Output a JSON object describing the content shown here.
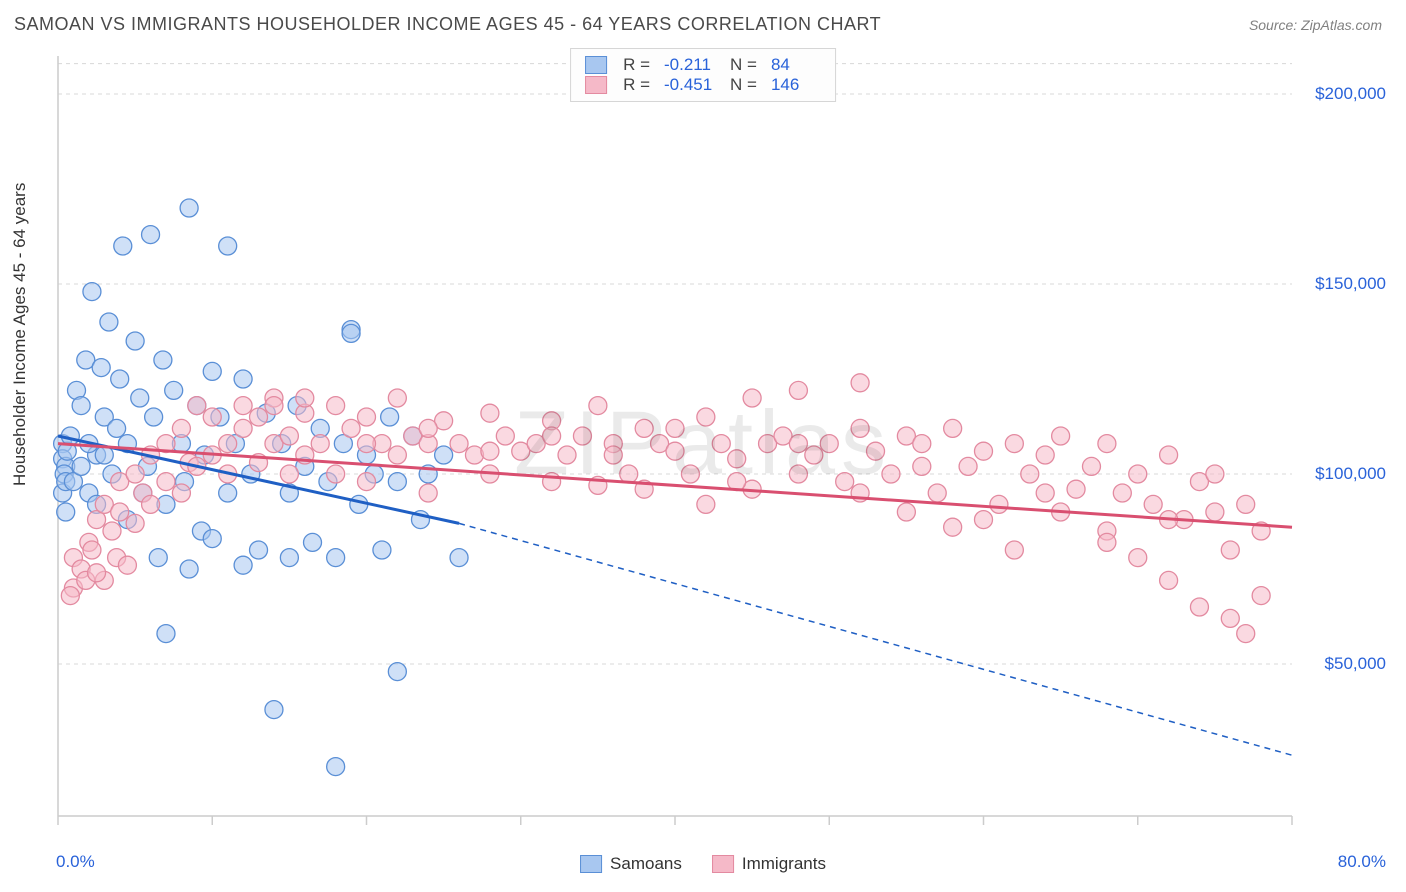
{
  "title": "SAMOAN VS IMMIGRANTS HOUSEHOLDER INCOME AGES 45 - 64 YEARS CORRELATION CHART",
  "source": "Source: ZipAtlas.com",
  "watermark": "ZIPatlas",
  "ylabel": "Householder Income Ages 45 - 64 years",
  "chart": {
    "type": "scatter",
    "xlim": [
      0,
      80
    ],
    "ylim": [
      10000,
      210000
    ],
    "x_axis_label_min": "0.0%",
    "x_axis_label_max": "80.0%",
    "y_ticks": [
      50000,
      100000,
      150000,
      200000
    ],
    "y_tick_labels": [
      "$50,000",
      "$100,000",
      "$150,000",
      "$200,000"
    ],
    "x_ticks": [
      0,
      10,
      20,
      30,
      40,
      50,
      60,
      70,
      80
    ],
    "background_color": "#ffffff",
    "grid_color": "#d8d8d8",
    "axis_color": "#cccccc",
    "marker_radius": 9,
    "marker_stroke_width": 1.3,
    "series": [
      {
        "name": "Samoans",
        "fill_color": "#a8c7f0",
        "stroke_color": "#5a8fd6",
        "fill_opacity": 0.55,
        "line_color": "#1f5fc4",
        "trend_solid": [
          [
            0,
            110000
          ],
          [
            26,
            87000
          ]
        ],
        "trend_dash": [
          [
            26,
            87000
          ],
          [
            80,
            26000
          ]
        ],
        "R": "-0.211",
        "N": "84",
        "points": [
          [
            0.3,
            108000
          ],
          [
            0.3,
            104000
          ],
          [
            0.5,
            102000
          ],
          [
            0.4,
            100000
          ],
          [
            0.6,
            106000
          ],
          [
            0.8,
            110000
          ],
          [
            0.3,
            95000
          ],
          [
            0.5,
            98000
          ],
          [
            1.2,
            122000
          ],
          [
            1.5,
            118000
          ],
          [
            1.8,
            130000
          ],
          [
            2.2,
            148000
          ],
          [
            2.5,
            105000
          ],
          [
            2.8,
            128000
          ],
          [
            3.0,
            115000
          ],
          [
            3.3,
            140000
          ],
          [
            3.5,
            100000
          ],
          [
            3.8,
            112000
          ],
          [
            4.0,
            125000
          ],
          [
            4.2,
            160000
          ],
          [
            4.5,
            108000
          ],
          [
            4.5,
            88000
          ],
          [
            5.0,
            135000
          ],
          [
            5.3,
            120000
          ],
          [
            5.5,
            95000
          ],
          [
            5.8,
            102000
          ],
          [
            6.0,
            163000
          ],
          [
            6.2,
            115000
          ],
          [
            6.5,
            78000
          ],
          [
            6.8,
            130000
          ],
          [
            7.0,
            92000
          ],
          [
            7.0,
            58000
          ],
          [
            7.5,
            122000
          ],
          [
            8.0,
            108000
          ],
          [
            8.2,
            98000
          ],
          [
            8.5,
            170000
          ],
          [
            8.5,
            75000
          ],
          [
            9.0,
            118000
          ],
          [
            9.3,
            85000
          ],
          [
            9.5,
            105000
          ],
          [
            10,
            127000
          ],
          [
            10,
            83000
          ],
          [
            10.5,
            115000
          ],
          [
            11,
            160000
          ],
          [
            11,
            95000
          ],
          [
            11.5,
            108000
          ],
          [
            12,
            125000
          ],
          [
            12,
            76000
          ],
          [
            12.5,
            100000
          ],
          [
            13,
            80000
          ],
          [
            13.5,
            116000
          ],
          [
            14,
            38000
          ],
          [
            14.5,
            108000
          ],
          [
            15,
            95000
          ],
          [
            15,
            78000
          ],
          [
            15.5,
            118000
          ],
          [
            16,
            102000
          ],
          [
            16.5,
            82000
          ],
          [
            17,
            112000
          ],
          [
            17.5,
            98000
          ],
          [
            18,
            78000
          ],
          [
            18,
            23000
          ],
          [
            18.5,
            108000
          ],
          [
            19,
            138000
          ],
          [
            19,
            137000
          ],
          [
            19.5,
            92000
          ],
          [
            20,
            105000
          ],
          [
            20.5,
            100000
          ],
          [
            21,
            80000
          ],
          [
            21.5,
            115000
          ],
          [
            22,
            98000
          ],
          [
            22,
            48000
          ],
          [
            23,
            110000
          ],
          [
            23.5,
            88000
          ],
          [
            24,
            100000
          ],
          [
            25,
            105000
          ],
          [
            26,
            78000
          ],
          [
            0.5,
            90000
          ],
          [
            1.0,
            98000
          ],
          [
            1.5,
            102000
          ],
          [
            2.0,
            95000
          ],
          [
            2.0,
            108000
          ],
          [
            2.5,
            92000
          ],
          [
            3.0,
            105000
          ]
        ]
      },
      {
        "name": "Immigrants",
        "fill_color": "#f5b9c8",
        "stroke_color": "#e38aa0",
        "fill_opacity": 0.55,
        "line_color": "#d94f70",
        "trend_solid": [
          [
            0,
            108000
          ],
          [
            80,
            86000
          ]
        ],
        "trend_dash": null,
        "R": "-0.451",
        "N": "146",
        "points": [
          [
            1,
            78000
          ],
          [
            2,
            82000
          ],
          [
            2.5,
            88000
          ],
          [
            3,
            92000
          ],
          [
            3.5,
            85000
          ],
          [
            4,
            98000
          ],
          [
            4,
            90000
          ],
          [
            5,
            100000
          ],
          [
            5,
            87000
          ],
          [
            5.5,
            95000
          ],
          [
            6,
            105000
          ],
          [
            6,
            92000
          ],
          [
            7,
            108000
          ],
          [
            7,
            98000
          ],
          [
            8,
            112000
          ],
          [
            8,
            95000
          ],
          [
            8.5,
            103000
          ],
          [
            9,
            118000
          ],
          [
            9,
            102000
          ],
          [
            10,
            115000
          ],
          [
            10,
            105000
          ],
          [
            11,
            108000
          ],
          [
            11,
            100000
          ],
          [
            12,
            118000
          ],
          [
            12,
            112000
          ],
          [
            13,
            115000
          ],
          [
            13,
            103000
          ],
          [
            14,
            120000
          ],
          [
            14,
            108000
          ],
          [
            15,
            110000
          ],
          [
            15,
            100000
          ],
          [
            16,
            116000
          ],
          [
            16,
            105000
          ],
          [
            17,
            108000
          ],
          [
            18,
            118000
          ],
          [
            18,
            100000
          ],
          [
            19,
            112000
          ],
          [
            20,
            115000
          ],
          [
            20,
            98000
          ],
          [
            21,
            108000
          ],
          [
            22,
            120000
          ],
          [
            22,
            105000
          ],
          [
            23,
            110000
          ],
          [
            24,
            108000
          ],
          [
            24,
            95000
          ],
          [
            25,
            114000
          ],
          [
            26,
            108000
          ],
          [
            27,
            105000
          ],
          [
            28,
            116000
          ],
          [
            28,
            100000
          ],
          [
            29,
            110000
          ],
          [
            30,
            106000
          ],
          [
            31,
            108000
          ],
          [
            32,
            114000
          ],
          [
            32,
            98000
          ],
          [
            33,
            105000
          ],
          [
            34,
            110000
          ],
          [
            35,
            118000
          ],
          [
            35,
            97000
          ],
          [
            36,
            108000
          ],
          [
            37,
            100000
          ],
          [
            38,
            112000
          ],
          [
            38,
            96000
          ],
          [
            39,
            108000
          ],
          [
            40,
            106000
          ],
          [
            41,
            100000
          ],
          [
            42,
            115000
          ],
          [
            42,
            92000
          ],
          [
            43,
            108000
          ],
          [
            44,
            104000
          ],
          [
            45,
            120000
          ],
          [
            45,
            96000
          ],
          [
            46,
            108000
          ],
          [
            47,
            110000
          ],
          [
            48,
            100000
          ],
          [
            48,
            122000
          ],
          [
            49,
            105000
          ],
          [
            50,
            108000
          ],
          [
            51,
            98000
          ],
          [
            52,
            112000
          ],
          [
            52,
            124000
          ],
          [
            53,
            106000
          ],
          [
            54,
            100000
          ],
          [
            55,
            110000
          ],
          [
            55,
            90000
          ],
          [
            56,
            108000
          ],
          [
            57,
            95000
          ],
          [
            58,
            112000
          ],
          [
            58,
            86000
          ],
          [
            59,
            102000
          ],
          [
            60,
            106000
          ],
          [
            61,
            92000
          ],
          [
            62,
            108000
          ],
          [
            62,
            80000
          ],
          [
            63,
            100000
          ],
          [
            64,
            105000
          ],
          [
            65,
            90000
          ],
          [
            65,
            110000
          ],
          [
            66,
            96000
          ],
          [
            67,
            102000
          ],
          [
            68,
            85000
          ],
          [
            68,
            108000
          ],
          [
            69,
            95000
          ],
          [
            70,
            100000
          ],
          [
            70,
            78000
          ],
          [
            71,
            92000
          ],
          [
            72,
            105000
          ],
          [
            72,
            72000
          ],
          [
            73,
            88000
          ],
          [
            74,
            98000
          ],
          [
            74,
            65000
          ],
          [
            75,
            90000
          ],
          [
            75,
            100000
          ],
          [
            76,
            80000
          ],
          [
            76,
            62000
          ],
          [
            77,
            58000
          ],
          [
            77,
            92000
          ],
          [
            78,
            68000
          ],
          [
            78,
            85000
          ],
          [
            14,
            118000
          ],
          [
            16,
            120000
          ],
          [
            20,
            108000
          ],
          [
            24,
            112000
          ],
          [
            28,
            106000
          ],
          [
            32,
            110000
          ],
          [
            36,
            105000
          ],
          [
            40,
            112000
          ],
          [
            44,
            98000
          ],
          [
            48,
            108000
          ],
          [
            52,
            95000
          ],
          [
            56,
            102000
          ],
          [
            60,
            88000
          ],
          [
            64,
            95000
          ],
          [
            68,
            82000
          ],
          [
            72,
            88000
          ],
          [
            1.5,
            75000
          ],
          [
            2.2,
            80000
          ],
          [
            3,
            72000
          ],
          [
            3.8,
            78000
          ],
          [
            4.5,
            76000
          ],
          [
            1,
            70000
          ],
          [
            1.8,
            72000
          ],
          [
            2.5,
            74000
          ],
          [
            0.8,
            68000
          ]
        ]
      }
    ]
  },
  "legend_bottom": [
    {
      "label": "Samoans",
      "fill": "#a8c7f0",
      "stroke": "#5a8fd6"
    },
    {
      "label": "Immigrants",
      "fill": "#f5b9c8",
      "stroke": "#e38aa0"
    }
  ]
}
